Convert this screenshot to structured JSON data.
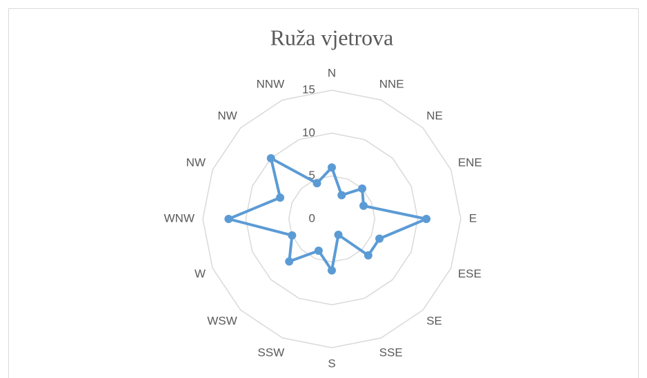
{
  "chart_data": {
    "type": "radar",
    "title": "Ruža vjetrova",
    "categories": [
      "N",
      "NNE",
      "NE",
      "ENE",
      "E",
      "ESE",
      "SE",
      "SSE",
      "S",
      "SSW",
      "WSW",
      "W",
      "WNW",
      "NW",
      "NW",
      "NNW"
    ],
    "series": [
      {
        "name": "Ruža vjetrova",
        "color": "#5b9bd5",
        "values": [
          6,
          3,
          5,
          4,
          11,
          6,
          6,
          2,
          6,
          4,
          7,
          5,
          12,
          6.5,
          10,
          4.5
        ]
      }
    ],
    "ylim": [
      0,
      15
    ],
    "yticks": [
      0,
      5,
      10,
      15
    ],
    "grid": true
  }
}
